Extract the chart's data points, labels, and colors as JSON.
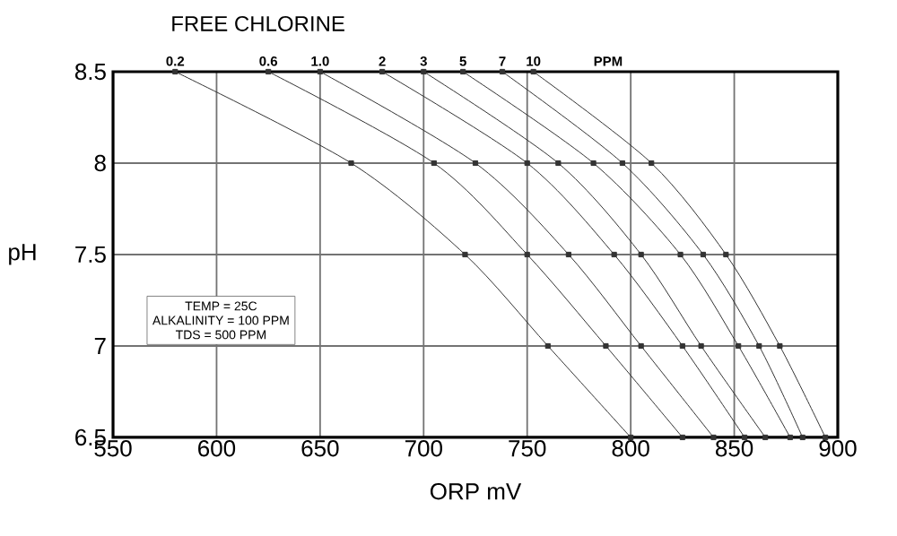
{
  "chart_data": {
    "type": "line",
    "title": "FREE CHLORINE",
    "xlabel": "ORP mV",
    "ylabel": "pH",
    "xlim": [
      550,
      900
    ],
    "xticks": [
      550,
      600,
      650,
      700,
      750,
      800,
      850,
      900
    ],
    "ylim": [
      6.5,
      8.5
    ],
    "yticks": [
      6.5,
      7,
      7.5,
      8,
      8.5
    ],
    "grid": true,
    "marker": "square",
    "line_style": "solid",
    "annotations": [
      "PPM",
      "TEMP = 25C",
      "ALKALINITY = 100 PPM",
      "TDS = 500 PPM"
    ],
    "series": [
      {
        "name": "0.2",
        "color": "#333333",
        "x": [
          580,
          665,
          720,
          760,
          800
        ],
        "values": [
          8.5,
          8,
          7.5,
          7,
          6.5
        ]
      },
      {
        "name": "0.6",
        "color": "#333333",
        "x": [
          625,
          705,
          750,
          788,
          825
        ],
        "values": [
          8.5,
          8,
          7.5,
          7,
          6.5
        ]
      },
      {
        "name": "1.0",
        "color": "#333333",
        "x": [
          650,
          725,
          770,
          805,
          840
        ],
        "values": [
          8.5,
          8,
          7.5,
          7,
          6.5
        ]
      },
      {
        "name": "2",
        "color": "#333333",
        "x": [
          680,
          750,
          792,
          825,
          855
        ],
        "values": [
          8.5,
          8,
          7.5,
          7,
          6.5
        ]
      },
      {
        "name": "3",
        "color": "#333333",
        "x": [
          700,
          765,
          805,
          834,
          865
        ],
        "values": [
          8.5,
          8,
          7.5,
          7,
          6.5
        ]
      },
      {
        "name": "5",
        "color": "#333333",
        "x": [
          719,
          782,
          824,
          852,
          877
        ],
        "values": [
          8.5,
          8,
          7.5,
          7,
          6.5
        ]
      },
      {
        "name": "7",
        "color": "#333333",
        "x": [
          738,
          796,
          835,
          862,
          883
        ],
        "values": [
          8.5,
          8,
          7.5,
          7,
          6.5
        ]
      },
      {
        "name": "10",
        "color": "#333333",
        "x": [
          753,
          810,
          846,
          872,
          894
        ],
        "values": [
          8.5,
          8,
          7.5,
          7,
          6.5
        ]
      }
    ]
  }
}
